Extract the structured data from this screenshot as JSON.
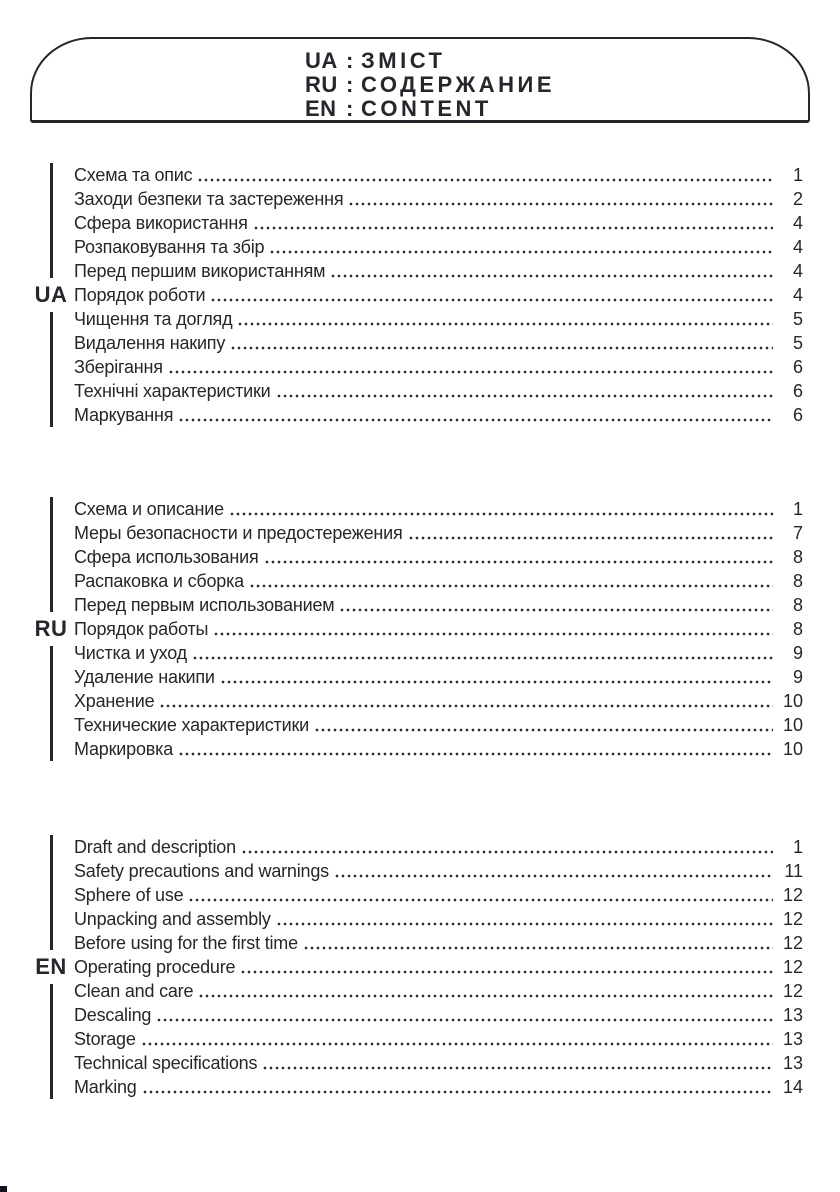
{
  "header": {
    "separator": ":",
    "items": [
      {
        "lang": "UA",
        "title": "ЗМІСТ"
      },
      {
        "lang": "RU",
        "title": "СОДЕРЖАНИЕ"
      },
      {
        "lang": "EN",
        "title": "CONTENT"
      }
    ]
  },
  "sections": [
    {
      "lang": "UA",
      "items": [
        {
          "title": "Схема та опис",
          "page": "1"
        },
        {
          "title": "Заходи безпеки та застереження",
          "page": "2"
        },
        {
          "title": "Сфера використання",
          "page": "4"
        },
        {
          "title": "Розпаковування та збір",
          "page": "4"
        },
        {
          "title": "Перед першим використанням",
          "page": "4"
        },
        {
          "title": "Порядок роботи",
          "page": "4"
        },
        {
          "title": "Чищення та догляд",
          "page": "5"
        },
        {
          "title": "Видалення накипу",
          "page": "5"
        },
        {
          "title": "Зберігання",
          "page": "6"
        },
        {
          "title": "Технічні характеристики",
          "page": "6"
        },
        {
          "title": "Маркування",
          "page": "6"
        }
      ]
    },
    {
      "lang": "RU",
      "items": [
        {
          "title": "Схема и описание",
          "page": "1"
        },
        {
          "title": "Меры безопасности и предостережения",
          "page": "7"
        },
        {
          "title": "Сфера использования",
          "page": "8"
        },
        {
          "title": "Распаковка и сборка",
          "page": "8"
        },
        {
          "title": "Перед первым использованием",
          "page": "8"
        },
        {
          "title": "Порядок работы",
          "page": "8"
        },
        {
          "title": "Чистка и уход",
          "page": "9"
        },
        {
          "title": "Удаление накипи",
          "page": "9"
        },
        {
          "title": "Хранение",
          "page": "10"
        },
        {
          "title": "Технические характеристики",
          "page": "10"
        },
        {
          "title": "Маркировка",
          "page": "10"
        }
      ]
    },
    {
      "lang": "EN",
      "items": [
        {
          "title": "Draft and description",
          "page": "1"
        },
        {
          "title": "Safety precautions and warnings",
          "page": "11"
        },
        {
          "title": "Sphere of use",
          "page": "12"
        },
        {
          "title": "Unpacking and assembly",
          "page": "12"
        },
        {
          "title": "Before using for the first time",
          "page": "12"
        },
        {
          "title": "Operating procedure",
          "page": "12"
        },
        {
          "title": "Clean and care",
          "page": "12"
        },
        {
          "title": "Descaling",
          "page": "13"
        },
        {
          "title": "Storage",
          "page": "13"
        },
        {
          "title": "Technical specifications",
          "page": "13"
        },
        {
          "title": "Marking",
          "page": "14"
        }
      ]
    }
  ]
}
